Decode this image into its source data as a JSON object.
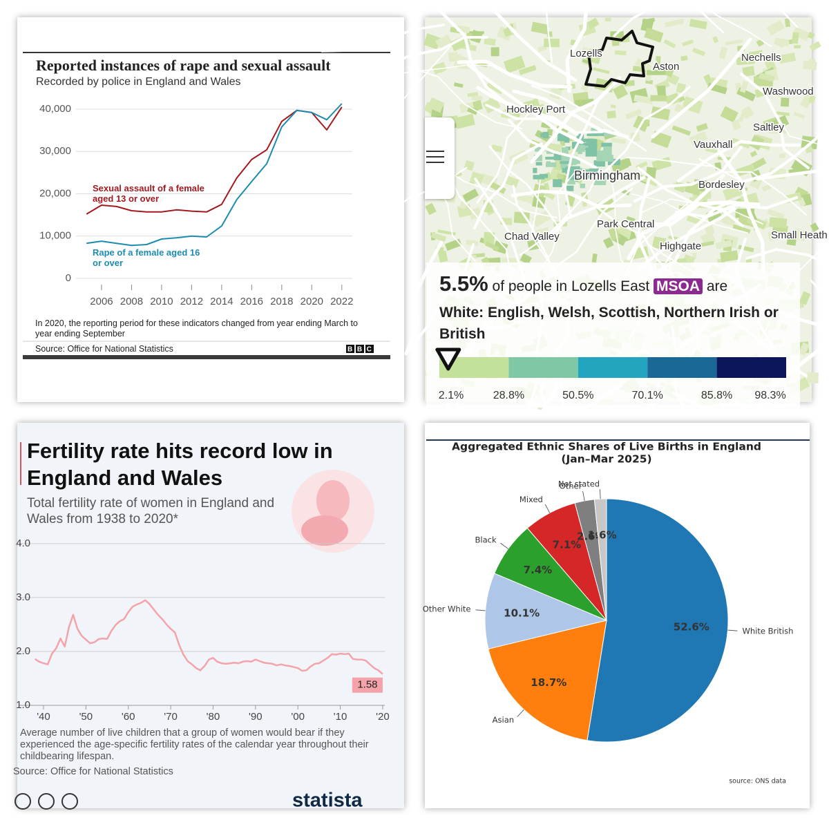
{
  "chart_data": [
    {
      "type": "line",
      "title": "Reported instances of rape and sexual assault",
      "subtitle": "Recorded by police in England and Wales",
      "x": [
        2005,
        2006,
        2007,
        2008,
        2009,
        2010,
        2011,
        2012,
        2013,
        2014,
        2015,
        2016,
        2017,
        2018,
        2019,
        2020,
        2021,
        2022
      ],
      "xlim": [
        2004.3,
        2022.7
      ],
      "xticks": [
        2006,
        2008,
        2010,
        2012,
        2014,
        2016,
        2018,
        2020,
        2022
      ],
      "ylim": [
        0,
        42000
      ],
      "yticks": [
        0,
        {
          "value": 10000,
          "label": "10,000"
        },
        {
          "value": 20000,
          "label": "20,000"
        },
        {
          "value": 30000,
          "label": "30,000"
        },
        {
          "value": 40000,
          "label": "40,000"
        }
      ],
      "grid": true,
      "series": [
        {
          "name": "Sexual assault of a female aged 13 or over",
          "color": "#a3191f",
          "values": [
            15200,
            17300,
            17000,
            16000,
            15700,
            15700,
            16200,
            15900,
            15700,
            17500,
            23700,
            28100,
            30400,
            37100,
            39700,
            39200,
            35100,
            40500
          ]
        },
        {
          "name": "Rape of a female aged 16 or over",
          "color": "#1d8bb0",
          "values": [
            8300,
            8800,
            8300,
            7800,
            8000,
            9300,
            9600,
            10000,
            9800,
            12400,
            18600,
            22900,
            27100,
            35800,
            39700,
            39200,
            37500,
            41300
          ]
        }
      ],
      "note": "In 2020, the reporting period for these indicators changed from year ending March to year ending September",
      "source": "Source: Office for National Statistics",
      "logo": "BBC"
    },
    {
      "type": "line",
      "title": "Fertility rate hits record low in England and Wales",
      "subtitle": "Total fertility rate of women in England and Wales from 1938 to 2020*",
      "x": [
        1938,
        1939,
        1940,
        1941,
        1942,
        1943,
        1944,
        1945,
        1946,
        1947,
        1948,
        1949,
        1950,
        1951,
        1952,
        1953,
        1954,
        1955,
        1956,
        1957,
        1958,
        1959,
        1960,
        1961,
        1962,
        1963,
        1964,
        1965,
        1966,
        1967,
        1968,
        1969,
        1970,
        1971,
        1972,
        1973,
        1974,
        1975,
        1976,
        1977,
        1978,
        1979,
        1980,
        1981,
        1982,
        1983,
        1984,
        1985,
        1986,
        1987,
        1988,
        1989,
        1990,
        1991,
        1992,
        1993,
        1994,
        1995,
        1996,
        1997,
        1998,
        1999,
        2000,
        2001,
        2002,
        2003,
        2004,
        2005,
        2006,
        2007,
        2008,
        2009,
        2010,
        2011,
        2012,
        2013,
        2014,
        2015,
        2016,
        2017,
        2018,
        2019,
        2020
      ],
      "values": [
        1.86,
        1.81,
        1.78,
        1.76,
        1.96,
        2.06,
        2.24,
        2.09,
        2.45,
        2.68,
        2.42,
        2.29,
        2.22,
        2.15,
        2.17,
        2.23,
        2.24,
        2.23,
        2.38,
        2.49,
        2.56,
        2.6,
        2.73,
        2.83,
        2.87,
        2.9,
        2.95,
        2.88,
        2.78,
        2.68,
        2.6,
        2.5,
        2.42,
        2.35,
        2.12,
        1.94,
        1.82,
        1.76,
        1.69,
        1.65,
        1.73,
        1.85,
        1.88,
        1.81,
        1.78,
        1.77,
        1.78,
        1.79,
        1.78,
        1.81,
        1.82,
        1.81,
        1.85,
        1.82,
        1.79,
        1.78,
        1.77,
        1.74,
        1.76,
        1.74,
        1.73,
        1.71,
        1.69,
        1.64,
        1.65,
        1.72,
        1.77,
        1.78,
        1.83,
        1.88,
        1.95,
        1.94,
        1.96,
        1.95,
        1.96,
        1.86,
        1.85,
        1.85,
        1.83,
        1.76,
        1.69,
        1.65,
        1.58
      ],
      "color": "#f4a3aa",
      "xlim": [
        1934.3,
        2020.5
      ],
      "xticks": [
        {
          "value": 1940,
          "label": "'40"
        },
        {
          "value": 1950,
          "label": "'50"
        },
        {
          "value": 1960,
          "label": "'60"
        },
        {
          "value": 1970,
          "label": "'70"
        },
        {
          "value": 1980,
          "label": "'80"
        },
        {
          "value": 1990,
          "label": "'90"
        },
        {
          "value": 2000,
          "label": "'00"
        },
        {
          "value": 2010,
          "label": "'10"
        },
        {
          "value": 2020,
          "label": "'20"
        }
      ],
      "ylim": [
        1,
        4.08
      ],
      "yticks": [
        {
          "value": 1,
          "label": "1.0"
        },
        {
          "value": 2,
          "label": "2.0"
        },
        {
          "value": 3,
          "label": "3.0"
        },
        {
          "value": 4,
          "label": "4.0"
        }
      ],
      "grid": true,
      "note": "Average number of live children that a group of women would bear if they experienced the age-specific fertility rates of the calendar year throughout their childbearing lifespan.",
      "source": "Source: Office for National Statistics",
      "logo": "statista"
    },
    {
      "type": "pie",
      "title": "Aggregated Ethnic Shares of Live Births in England",
      "subtitle": "(Jan–Mar 2025)",
      "categories": [
        "White British",
        "Asian",
        "Other White",
        "Black",
        "Mixed",
        "Other",
        "Not stated"
      ],
      "values": [
        52.6,
        18.7,
        10.1,
        7.4,
        7.1,
        2.6,
        1.6
      ],
      "value_labels": [
        "52.6%",
        "18.7%",
        "10.1%",
        "7.4%",
        "7.1%",
        "2.6%",
        "1.6%"
      ],
      "colors": [
        "#1f77b4",
        "#ff7f0e",
        "#aec7e8",
        "#2ca02c",
        "#d62728",
        "#7f7f7f",
        "#c7c7c7"
      ],
      "source": "source: ONS data"
    }
  ],
  "map": {
    "places": [
      "Lozells",
      "Aston",
      "Nechells",
      "Washwood",
      "Hockley Port",
      "Saltley",
      "Vauxhall",
      "Birmingham",
      "Bordesley",
      "Park Central",
      "Chad Valley",
      "Highgate",
      "Small Heath"
    ],
    "value": 5.5,
    "value_label": "5.5%",
    "text": "of people in Lozells East",
    "badge": "MSOA",
    "text_end": "are",
    "category": "White: English, Welsh, Scottish, Northern Irish or British",
    "breaks": [
      {
        "value": 2.1,
        "label": "2.1%"
      },
      {
        "value": 28.8,
        "label": "28.8%"
      },
      {
        "value": 50.5,
        "label": "50.5%"
      },
      {
        "value": 70.1,
        "label": "70.1%"
      },
      {
        "value": 85.8,
        "label": "85.8%"
      },
      {
        "value": 98.3,
        "label": "98.3%"
      }
    ],
    "colors": [
      "#c4e19b",
      "#80c8a5",
      "#22a5be",
      "#1b6897",
      "#0b175a"
    ]
  }
}
